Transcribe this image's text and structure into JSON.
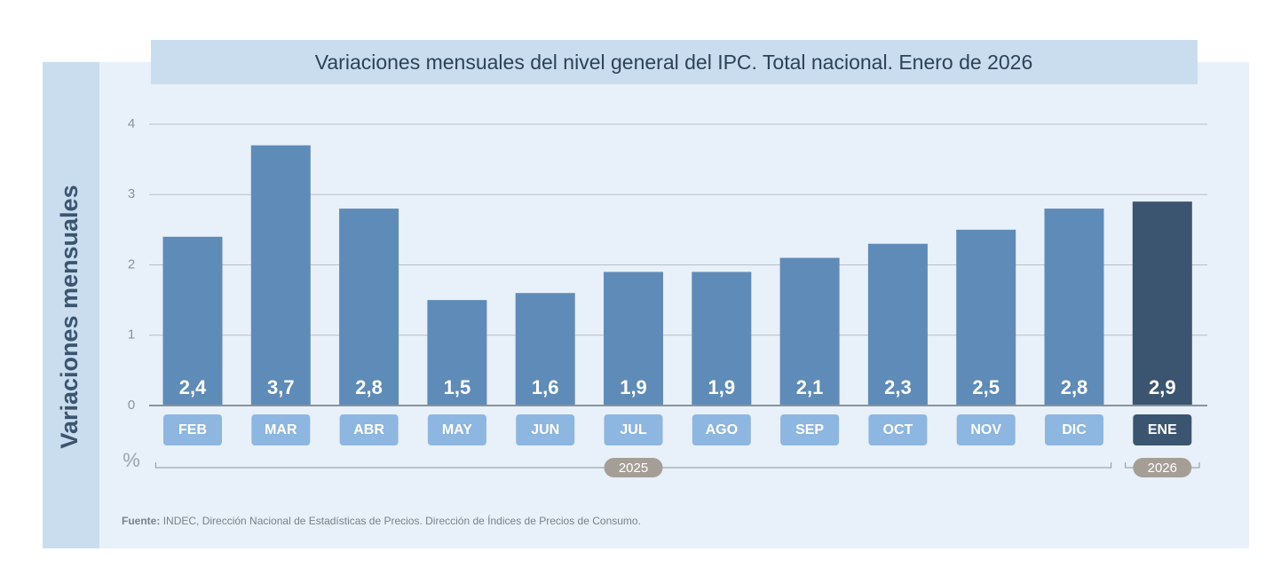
{
  "chart_data": {
    "type": "bar",
    "title": "Variaciones mensuales del nivel general del IPC. Total nacional. Enero de 2026",
    "ylabel": "Variaciones mensuales",
    "unit": "%",
    "categories": [
      "FEB",
      "MAR",
      "ABR",
      "MAY",
      "JUN",
      "JUL",
      "AGO",
      "SEP",
      "OCT",
      "NOV",
      "DIC",
      "ENE"
    ],
    "values": [
      2.4,
      3.7,
      2.8,
      1.5,
      1.6,
      1.9,
      1.9,
      2.1,
      2.3,
      2.5,
      2.8,
      2.9
    ],
    "value_labels": [
      "2,4",
      "3,7",
      "2,8",
      "1,5",
      "1,6",
      "1,9",
      "1,9",
      "2,1",
      "2,3",
      "2,5",
      "2,8",
      "2,9"
    ],
    "colors": [
      "#5f8bb8",
      "#5f8bb8",
      "#5f8bb8",
      "#5f8bb8",
      "#5f8bb8",
      "#5f8bb8",
      "#5f8bb8",
      "#5f8bb8",
      "#5f8bb8",
      "#5f8bb8",
      "#5f8bb8",
      "#3b5570"
    ],
    "category_colors": [
      "#8db6e0",
      "#8db6e0",
      "#8db6e0",
      "#8db6e0",
      "#8db6e0",
      "#8db6e0",
      "#8db6e0",
      "#8db6e0",
      "#8db6e0",
      "#8db6e0",
      "#8db6e0",
      "#3b5570"
    ],
    "x_groups": [
      {
        "label": "2025",
        "count": 11
      },
      {
        "label": "2026",
        "count": 1
      }
    ],
    "ylim": [
      0,
      4
    ],
    "yticks": [
      0,
      1,
      2,
      3,
      4
    ],
    "grid": true,
    "source_label": "Fuente:",
    "source": "INDEC, Dirección Nacional de Estadísticas de Precios. Dirección de Índices de Precios de Consumo."
  }
}
